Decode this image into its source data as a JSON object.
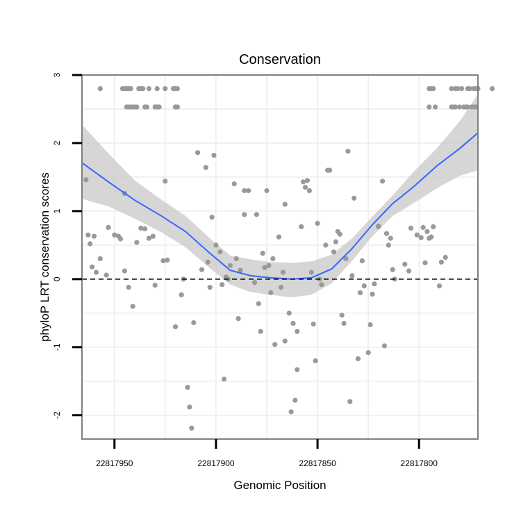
{
  "chart_data": {
    "type": "scatter",
    "title": "Conservation",
    "xlabel": "Genomic Position",
    "ylabel": "phyloP LRT conservation scores",
    "x_reversed": true,
    "xlim": [
      22817966,
      22817771
    ],
    "ylim": [
      -2.35,
      3.0
    ],
    "x_ticks": [
      22817950,
      22817900,
      22817850,
      22817800
    ],
    "x_tick_labels": [
      "22817950",
      "22817900",
      "22817850",
      "22817800"
    ],
    "y_ticks": [
      -2,
      -1,
      0,
      1,
      2,
      3
    ],
    "y_tick_labels": [
      "-2",
      "-1",
      "0",
      "1",
      "2",
      "3"
    ],
    "reference_line": {
      "y": 0,
      "style": "dashed"
    },
    "colors": {
      "points": "#999999",
      "smooth_line": "#3366ff",
      "ribbon": "#c8c8c8",
      "grid": "#ececec",
      "panel_border": "#7f7f7f",
      "reference_line": "#000000"
    },
    "series": [
      {
        "name": "phyloP scores",
        "points": [
          [
            22817957,
            2.8
          ],
          [
            22817946,
            2.8
          ],
          [
            22817945,
            2.8
          ],
          [
            22817944,
            2.8
          ],
          [
            22817943,
            2.8
          ],
          [
            22817942,
            2.8
          ],
          [
            22817938,
            2.8
          ],
          [
            22817937,
            2.8
          ],
          [
            22817936,
            2.8
          ],
          [
            22817933,
            2.8
          ],
          [
            22817929,
            2.8
          ],
          [
            22817925,
            2.8
          ],
          [
            22817921,
            2.8
          ],
          [
            22817920,
            2.8
          ],
          [
            22817919,
            2.8
          ],
          [
            22817944,
            2.53
          ],
          [
            22817943,
            2.53
          ],
          [
            22817942,
            2.53
          ],
          [
            22817941,
            2.53
          ],
          [
            22817940,
            2.53
          ],
          [
            22817939,
            2.53
          ],
          [
            22817935,
            2.53
          ],
          [
            22817934,
            2.53
          ],
          [
            22817930,
            2.53
          ],
          [
            22817929,
            2.53
          ],
          [
            22817928,
            2.53
          ],
          [
            22817920,
            2.53
          ],
          [
            22817919,
            2.53
          ],
          [
            22817795,
            2.8
          ],
          [
            22817794,
            2.8
          ],
          [
            22817793,
            2.8
          ],
          [
            22817784,
            2.8
          ],
          [
            22817782,
            2.8
          ],
          [
            22817781,
            2.8
          ],
          [
            22817779,
            2.8
          ],
          [
            22817776,
            2.8
          ],
          [
            22817775,
            2.8
          ],
          [
            22817771,
            2.8
          ],
          [
            22817764,
            2.8
          ],
          [
            22817773,
            2.8
          ],
          [
            22817772,
            2.8
          ],
          [
            22817795,
            2.53
          ],
          [
            22817792,
            2.53
          ],
          [
            22817784,
            2.53
          ],
          [
            22817783,
            2.53
          ],
          [
            22817782,
            2.53
          ],
          [
            22817780,
            2.53
          ],
          [
            22817778,
            2.53
          ],
          [
            22817777,
            2.53
          ],
          [
            22817776,
            2.53
          ],
          [
            22817774,
            2.53
          ],
          [
            22817773,
            2.53
          ],
          [
            22817772,
            2.53
          ],
          [
            22817964,
            1.46
          ],
          [
            22817963,
            0.65
          ],
          [
            22817962,
            0.52
          ],
          [
            22817961,
            0.18
          ],
          [
            22817960,
            0.63
          ],
          [
            22817959,
            0.1
          ],
          [
            22817957,
            0.3
          ],
          [
            22817954,
            0.06
          ],
          [
            22817953,
            0.76
          ],
          [
            22817950,
            0.65
          ],
          [
            22817948,
            0.63
          ],
          [
            22817947,
            0.59
          ],
          [
            22817945,
            0.12
          ],
          [
            22817945,
            1.26
          ],
          [
            22817943,
            -0.12
          ],
          [
            22817941,
            -0.4
          ],
          [
            22817939,
            0.54
          ],
          [
            22817937,
            0.75
          ],
          [
            22817935,
            0.74
          ],
          [
            22817933,
            0.6
          ],
          [
            22817931,
            0.63
          ],
          [
            22817930,
            -0.09
          ],
          [
            22817926,
            0.27
          ],
          [
            22817924,
            0.28
          ],
          [
            22817925,
            1.44
          ],
          [
            22817920,
            -0.7
          ],
          [
            22817917,
            -0.23
          ],
          [
            22817916,
            0.0
          ],
          [
            22817914,
            -1.59
          ],
          [
            22817913,
            -1.88
          ],
          [
            22817912,
            -2.19
          ],
          [
            22817911,
            -0.64
          ],
          [
            22817909,
            1.86
          ],
          [
            22817907,
            0.14
          ],
          [
            22817905,
            1.64
          ],
          [
            22817904,
            0.25
          ],
          [
            22817903,
            -0.12
          ],
          [
            22817902,
            0.91
          ],
          [
            22817901,
            1.82
          ],
          [
            22817900,
            0.5
          ],
          [
            22817898,
            0.4
          ],
          [
            22817897,
            -0.08
          ],
          [
            22817896,
            -1.47
          ],
          [
            22817895,
            0.03
          ],
          [
            22817894,
            0.0
          ],
          [
            22817893,
            0.2
          ],
          [
            22817891,
            1.4
          ],
          [
            22817890,
            0.3
          ],
          [
            22817889,
            -0.58
          ],
          [
            22817888,
            0.13
          ],
          [
            22817886,
            1.3
          ],
          [
            22817886,
            0.95
          ],
          [
            22817884,
            1.3
          ],
          [
            22817881,
            -0.05
          ],
          [
            22817880,
            0.95
          ],
          [
            22817879,
            -0.36
          ],
          [
            22817878,
            -0.77
          ],
          [
            22817877,
            0.38
          ],
          [
            22817876,
            0.17
          ],
          [
            22817875,
            1.3
          ],
          [
            22817874,
            0.2
          ],
          [
            22817873,
            -0.2
          ],
          [
            22817872,
            0.3
          ],
          [
            22817871,
            -0.96
          ],
          [
            22817869,
            0.62
          ],
          [
            22817868,
            -0.12
          ],
          [
            22817867,
            0.1
          ],
          [
            22817866,
            -0.91
          ],
          [
            22817866,
            1.1
          ],
          [
            22817864,
            -0.5
          ],
          [
            22817863,
            -1.95
          ],
          [
            22817862,
            -0.65
          ],
          [
            22817861,
            -1.78
          ],
          [
            22817860,
            -1.33
          ],
          [
            22817860,
            -0.77
          ],
          [
            22817858,
            0.77
          ],
          [
            22817857,
            1.43
          ],
          [
            22817856,
            1.35
          ],
          [
            22817855,
            1.45
          ],
          [
            22817854,
            1.3
          ],
          [
            22817853,
            0.1
          ],
          [
            22817852,
            -0.66
          ],
          [
            22817851,
            -1.2
          ],
          [
            22817850,
            0.82
          ],
          [
            22817849,
            0.0
          ],
          [
            22817848,
            -0.08
          ],
          [
            22817846,
            0.5
          ],
          [
            22817845,
            1.6
          ],
          [
            22817844,
            1.6
          ],
          [
            22817842,
            0.4
          ],
          [
            22817841,
            0.55
          ],
          [
            22817840,
            0.7
          ],
          [
            22817839,
            0.66
          ],
          [
            22817838,
            -0.53
          ],
          [
            22817837,
            -0.65
          ],
          [
            22817836,
            0.3
          ],
          [
            22817835,
            1.88
          ],
          [
            22817834,
            -1.8
          ],
          [
            22817833,
            0.05
          ],
          [
            22817832,
            1.19
          ],
          [
            22817830,
            -1.17
          ],
          [
            22817829,
            -0.2
          ],
          [
            22817828,
            0.27
          ],
          [
            22817827,
            -0.1
          ],
          [
            22817825,
            -1.08
          ],
          [
            22817824,
            -0.67
          ],
          [
            22817823,
            -0.22
          ],
          [
            22817822,
            -0.07
          ],
          [
            22817820,
            0.77
          ],
          [
            22817820,
            0.78
          ],
          [
            22817818,
            1.44
          ],
          [
            22817817,
            -0.98
          ],
          [
            22817816,
            0.67
          ],
          [
            22817815,
            0.5
          ],
          [
            22817814,
            0.6
          ],
          [
            22817813,
            0.14
          ],
          [
            22817812,
            0.0
          ],
          [
            22817807,
            0.22
          ],
          [
            22817805,
            0.12
          ],
          [
            22817804,
            0.75
          ],
          [
            22817801,
            0.65
          ],
          [
            22817799,
            0.61
          ],
          [
            22817798,
            0.76
          ],
          [
            22817797,
            0.24
          ],
          [
            22817796,
            0.7
          ],
          [
            22817795,
            0.6
          ],
          [
            22817794,
            0.62
          ],
          [
            22817790,
            -0.1
          ],
          [
            22817789,
            0.25
          ],
          [
            22817787,
            0.32
          ],
          [
            22817793,
            0.77
          ]
        ]
      },
      {
        "name": "loess fit",
        "x": [
          22817966,
          22817953,
          22817940,
          22817927,
          22817915,
          22817903,
          22817893,
          22817883,
          22817873,
          22817863,
          22817853,
          22817843,
          22817833,
          22817823,
          22817813,
          22817803,
          22817791,
          22817780,
          22817771
        ],
        "y": [
          1.71,
          1.43,
          1.16,
          0.93,
          0.7,
          0.38,
          0.13,
          0.05,
          0.02,
          0.0,
          0.02,
          0.15,
          0.45,
          0.8,
          1.11,
          1.35,
          1.67,
          1.92,
          2.15
        ],
        "ci_upper": [
          2.27,
          1.85,
          1.45,
          1.17,
          0.93,
          0.6,
          0.35,
          0.29,
          0.25,
          0.24,
          0.26,
          0.36,
          0.6,
          0.92,
          1.23,
          1.57,
          1.93,
          2.32,
          2.72
        ],
        "ci_lower": [
          1.18,
          1.07,
          0.89,
          0.69,
          0.47,
          0.16,
          -0.08,
          -0.19,
          -0.23,
          -0.27,
          -0.23,
          -0.06,
          0.27,
          0.63,
          0.93,
          1.11,
          1.34,
          1.52,
          1.6
        ]
      }
    ]
  }
}
